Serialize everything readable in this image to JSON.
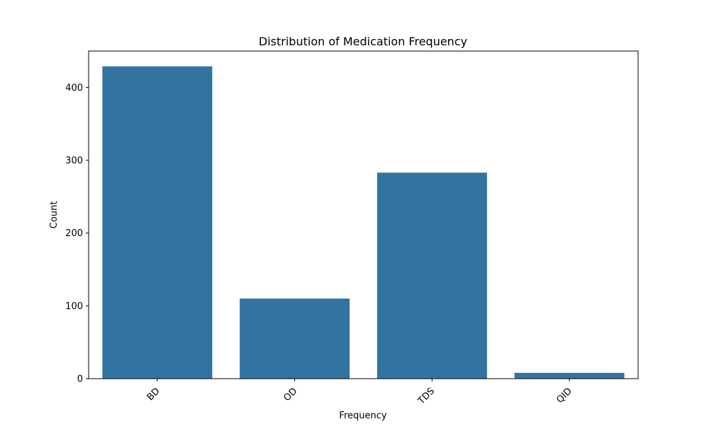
{
  "chart_data": {
    "type": "bar",
    "title": "Distribution of Medication Frequency",
    "xlabel": "Frequency",
    "ylabel": "Count",
    "categories": [
      "BD",
      "OD",
      "TDS",
      "QID"
    ],
    "values": [
      429,
      110,
      283,
      8
    ],
    "ylim": [
      0,
      450
    ],
    "yticks": [
      0,
      100,
      200,
      300,
      400
    ],
    "xtick_rotation_deg": 45,
    "bar_color": "#3274a1",
    "grid": false,
    "legend": "none"
  }
}
